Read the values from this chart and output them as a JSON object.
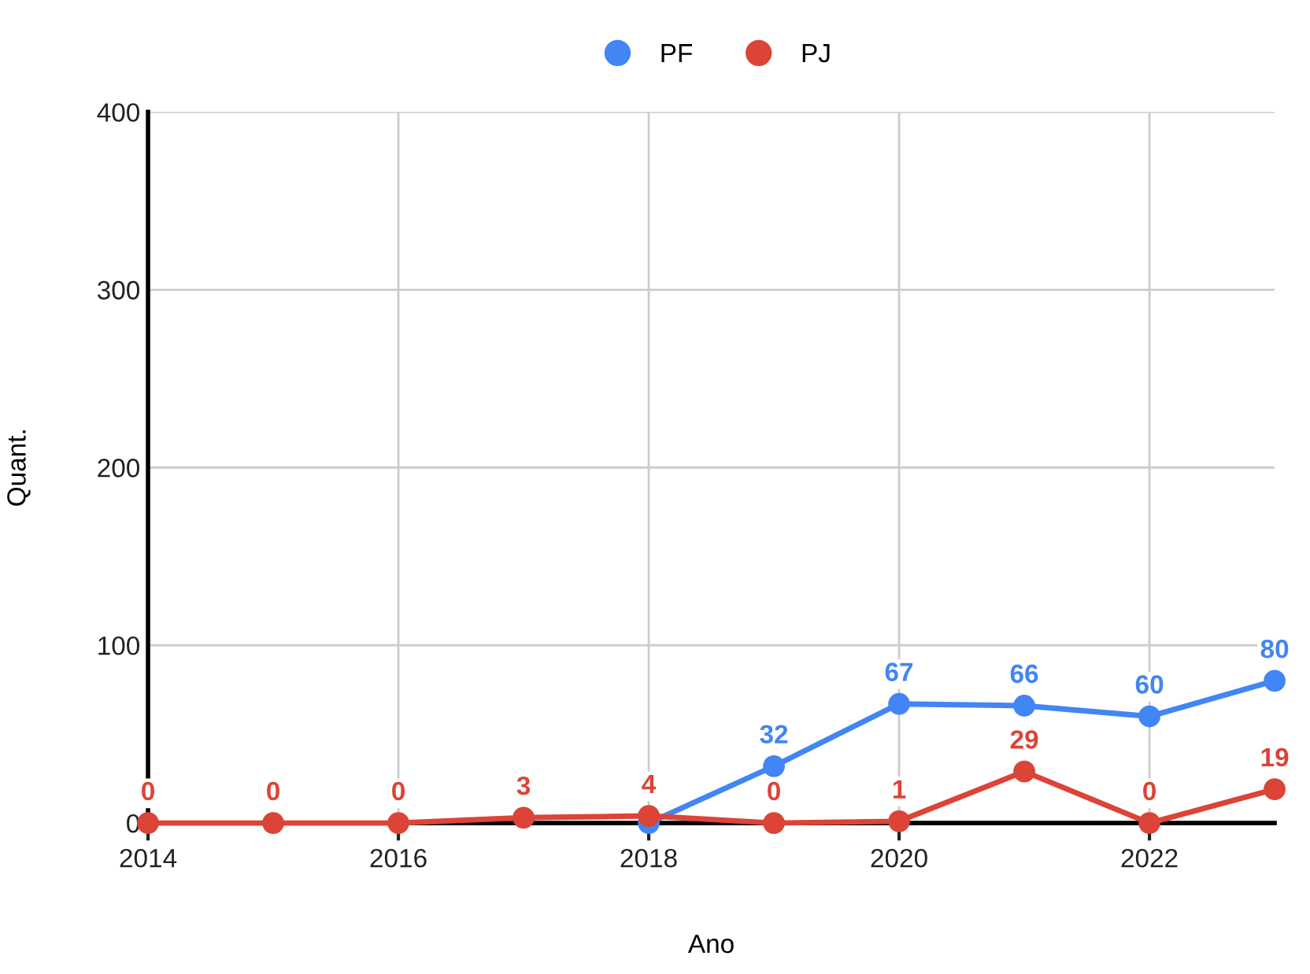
{
  "chart_data": {
    "type": "line",
    "xlabel": "Ano",
    "ylabel": "Quant.",
    "x": [
      2014,
      2015,
      2016,
      2017,
      2018,
      2019,
      2020,
      2021,
      2022,
      2023
    ],
    "series": [
      {
        "name": "PF",
        "color": "#4285f4",
        "values": [
          null,
          null,
          null,
          null,
          0,
          32,
          67,
          66,
          60,
          80
        ],
        "value_labels": [
          null,
          null,
          null,
          null,
          null,
          "32",
          "67",
          "66",
          "60",
          "80"
        ]
      },
      {
        "name": "PJ",
        "color": "#db4437",
        "values": [
          0,
          0,
          0,
          3,
          4,
          0,
          1,
          29,
          0,
          19
        ],
        "value_labels": [
          "0",
          "0",
          "0",
          "3",
          "4",
          "0",
          "1",
          "29",
          "0",
          "19"
        ]
      }
    ],
    "xlim": [
      2014,
      2023
    ],
    "xticks": [
      2014,
      2016,
      2018,
      2020,
      2022
    ],
    "ylim": [
      0,
      400
    ],
    "yticks": [
      0,
      100,
      200,
      300,
      400
    ],
    "grid": true,
    "legend": "top",
    "marker": "circle",
    "line_style": "solid"
  }
}
